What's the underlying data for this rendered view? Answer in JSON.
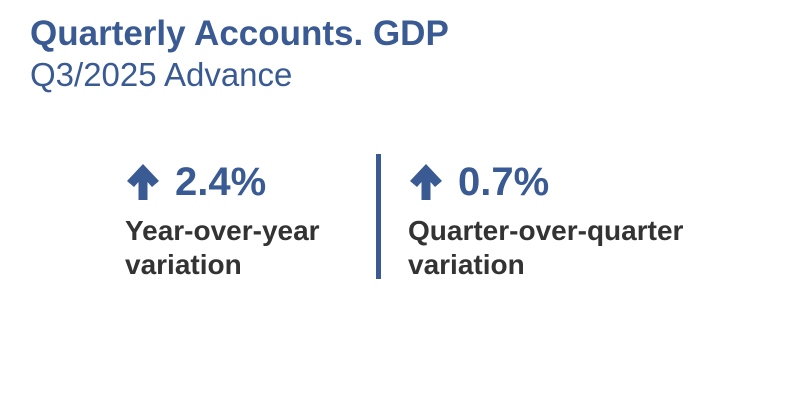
{
  "header": {
    "title": "Quarterly Accounts. GDP",
    "subtitle": "Q3/2025 Advance"
  },
  "metrics": [
    {
      "value": "2.4%",
      "label": "Year-over-year variation"
    },
    {
      "value": "0.7%",
      "label": "Quarter-over-quarter variation"
    }
  ]
}
